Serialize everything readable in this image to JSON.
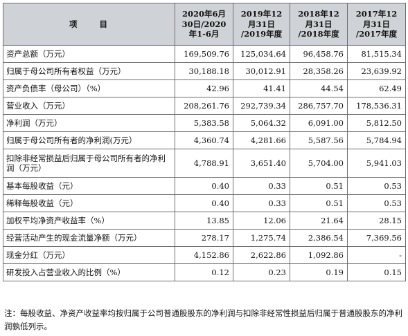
{
  "table": {
    "headers": {
      "item": "项 目",
      "cols": [
        [
          "2020年6月",
          "30日/2020",
          "年1-6月"
        ],
        [
          "2019年12",
          "月31日",
          "/2019年度"
        ],
        [
          "2018年12",
          "月31日",
          "/2018年度"
        ],
        [
          "2017年12",
          "月31日",
          "/2017年度"
        ]
      ]
    },
    "rows": [
      {
        "label": "资产总额（万元）",
        "values": [
          "169,509.76",
          "125,034.64",
          "96,458.76",
          "81,515.34"
        ]
      },
      {
        "label": "归属于母公司所有者权益（万元）",
        "values": [
          "30,188.18",
          "30,012.91",
          "28,358.26",
          "23,639.92"
        ]
      },
      {
        "label": "资产负债率（母公司）（%）",
        "values": [
          "42.96",
          "41.41",
          "44.54",
          "62.49"
        ]
      },
      {
        "label": "营业收入（万元）",
        "values": [
          "208,261.76",
          "292,739.34",
          "286,757.70",
          "178,536.31"
        ]
      },
      {
        "label": "净利润（万元）",
        "values": [
          "5,383.58",
          "5,064.32",
          "6,091.00",
          "5,812.50"
        ]
      },
      {
        "label": "归属于母公司所有者的净利润(万元）",
        "values": [
          "4,360.74",
          "4,281.66",
          "5,587.56",
          "5,784.94"
        ]
      },
      {
        "label": "扣除非经常损益后归属于母公司所有者的净利润（万元）",
        "values": [
          "4,788.91",
          "3,651.40",
          "5,704.00",
          "5,941.03"
        ]
      },
      {
        "label": "基本每股收益（元）",
        "values": [
          "0.40",
          "0.33",
          "0.51",
          "0.53"
        ]
      },
      {
        "label": "稀释每股收益（元）",
        "values": [
          "0.40",
          "0.33",
          "0.51",
          "0.53"
        ]
      },
      {
        "label": "加权平均净资产收益率（%）",
        "values": [
          "13.85",
          "12.06",
          "21.64",
          "28.15"
        ]
      },
      {
        "label": "经营活动产生的现金流量净额（万元）",
        "values": [
          "278.17",
          "1,275.74",
          "2,386.54",
          "7,369.56"
        ]
      },
      {
        "label": "现金分红（万元）",
        "values": [
          "4,152.86",
          "2,622.86",
          "1,092.86",
          "-"
        ]
      },
      {
        "label": "研发投入占营业收入的比例（%）",
        "values": [
          "0.12",
          "0.23",
          "0.19",
          "0.15"
        ]
      }
    ]
  },
  "note": "注：每股收益、净资产收益率均按归属于公司普通股股东的净利润与扣除非经常性损益后归属于普通股股东的净利润孰低列示。"
}
